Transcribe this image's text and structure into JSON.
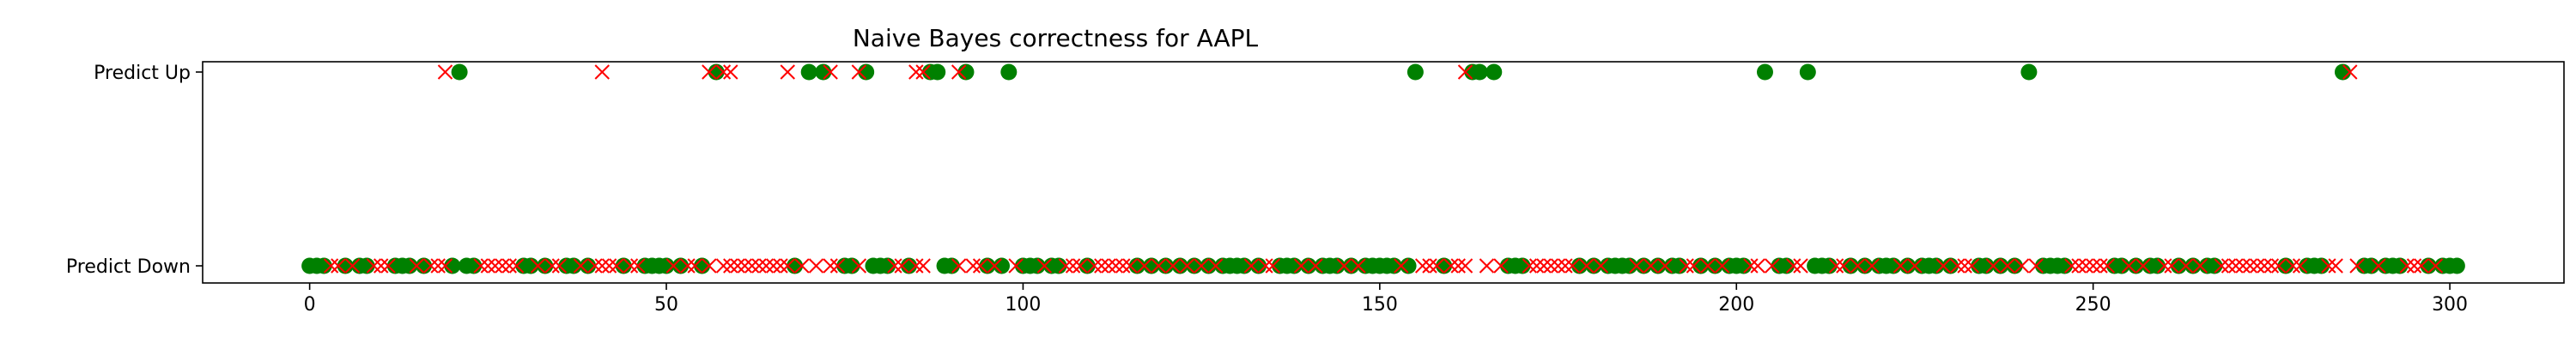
{
  "chart_data": {
    "type": "scatter",
    "title": "Naive Bayes correctness for AAPL",
    "xlabel": "",
    "ylabel": "",
    "xlim": [
      -15,
      316
    ],
    "x_ticks": [
      0,
      50,
      100,
      150,
      200,
      250,
      300
    ],
    "y_categories": [
      "Predict Down",
      "Predict Up"
    ],
    "grid": false,
    "colors": {
      "correct": "#008000",
      "incorrect": "#ff0000",
      "axis": "#000000"
    },
    "series": [
      {
        "marker": "circle",
        "color": "#008000",
        "points": [
          [
            0,
            0
          ],
          [
            1,
            0
          ],
          [
            2,
            0
          ],
          [
            5,
            0
          ],
          [
            7,
            0
          ],
          [
            8,
            0
          ],
          [
            12,
            0
          ],
          [
            13,
            0
          ],
          [
            14,
            0
          ],
          [
            16,
            0
          ],
          [
            20,
            0
          ],
          [
            22,
            0
          ],
          [
            23,
            0
          ],
          [
            30,
            0
          ],
          [
            31,
            0
          ],
          [
            33,
            0
          ],
          [
            36,
            0
          ],
          [
            37,
            0
          ],
          [
            39,
            0
          ],
          [
            44,
            0
          ],
          [
            47,
            0
          ],
          [
            48,
            0
          ],
          [
            49,
            0
          ],
          [
            50,
            0
          ],
          [
            52,
            0
          ],
          [
            55,
            0
          ],
          [
            68,
            0
          ],
          [
            75,
            0
          ],
          [
            76,
            0
          ],
          [
            79,
            0
          ],
          [
            80,
            0
          ],
          [
            81,
            0
          ],
          [
            84,
            0
          ],
          [
            89,
            0
          ],
          [
            90,
            0
          ],
          [
            95,
            0
          ],
          [
            97,
            0
          ],
          [
            100,
            0
          ],
          [
            101,
            0
          ],
          [
            102,
            0
          ],
          [
            104,
            0
          ],
          [
            105,
            0
          ],
          [
            109,
            0
          ],
          [
            116,
            0
          ],
          [
            118,
            0
          ],
          [
            120,
            0
          ],
          [
            122,
            0
          ],
          [
            124,
            0
          ],
          [
            126,
            0
          ],
          [
            128,
            0
          ],
          [
            129,
            0
          ],
          [
            130,
            0
          ],
          [
            131,
            0
          ],
          [
            133,
            0
          ],
          [
            136,
            0
          ],
          [
            137,
            0
          ],
          [
            138,
            0
          ],
          [
            140,
            0
          ],
          [
            142,
            0
          ],
          [
            143,
            0
          ],
          [
            144,
            0
          ],
          [
            146,
            0
          ],
          [
            148,
            0
          ],
          [
            149,
            0
          ],
          [
            150,
            0
          ],
          [
            151,
            0
          ],
          [
            152,
            0
          ],
          [
            154,
            0
          ],
          [
            159,
            0
          ],
          [
            168,
            0
          ],
          [
            169,
            0
          ],
          [
            170,
            0
          ],
          [
            178,
            0
          ],
          [
            180,
            0
          ],
          [
            182,
            0
          ],
          [
            183,
            0
          ],
          [
            184,
            0
          ],
          [
            185,
            0
          ],
          [
            187,
            0
          ],
          [
            189,
            0
          ],
          [
            191,
            0
          ],
          [
            192,
            0
          ],
          [
            195,
            0
          ],
          [
            197,
            0
          ],
          [
            199,
            0
          ],
          [
            200,
            0
          ],
          [
            201,
            0
          ],
          [
            206,
            0
          ],
          [
            207,
            0
          ],
          [
            211,
            0
          ],
          [
            212,
            0
          ],
          [
            213,
            0
          ],
          [
            216,
            0
          ],
          [
            218,
            0
          ],
          [
            220,
            0
          ],
          [
            221,
            0
          ],
          [
            222,
            0
          ],
          [
            224,
            0
          ],
          [
            226,
            0
          ],
          [
            227,
            0
          ],
          [
            228,
            0
          ],
          [
            230,
            0
          ],
          [
            234,
            0
          ],
          [
            235,
            0
          ],
          [
            237,
            0
          ],
          [
            239,
            0
          ],
          [
            243,
            0
          ],
          [
            244,
            0
          ],
          [
            245,
            0
          ],
          [
            246,
            0
          ],
          [
            253,
            0
          ],
          [
            254,
            0
          ],
          [
            256,
            0
          ],
          [
            258,
            0
          ],
          [
            259,
            0
          ],
          [
            262,
            0
          ],
          [
            264,
            0
          ],
          [
            266,
            0
          ],
          [
            267,
            0
          ],
          [
            277,
            0
          ],
          [
            280,
            0
          ],
          [
            281,
            0
          ],
          [
            282,
            0
          ],
          [
            288,
            0
          ],
          [
            289,
            0
          ],
          [
            291,
            0
          ],
          [
            292,
            0
          ],
          [
            293,
            0
          ],
          [
            297,
            0
          ],
          [
            299,
            0
          ],
          [
            300,
            0
          ],
          [
            301,
            0
          ],
          [
            21,
            1
          ],
          [
            57,
            1
          ],
          [
            70,
            1
          ],
          [
            72,
            1
          ],
          [
            78,
            1
          ],
          [
            87,
            1
          ],
          [
            88,
            1
          ],
          [
            92,
            1
          ],
          [
            98,
            1
          ],
          [
            155,
            1
          ],
          [
            163,
            1
          ],
          [
            164,
            1
          ],
          [
            166,
            1
          ],
          [
            204,
            1
          ],
          [
            210,
            1
          ],
          [
            241,
            1
          ],
          [
            285,
            1
          ]
        ]
      },
      {
        "marker": "x",
        "color": "#ff0000",
        "points": [
          [
            3,
            0
          ],
          [
            4,
            0
          ],
          [
            6,
            0
          ],
          [
            9,
            0
          ],
          [
            10,
            0
          ],
          [
            11,
            0
          ],
          [
            15,
            0
          ],
          [
            17,
            0
          ],
          [
            18,
            0
          ],
          [
            19,
            0
          ],
          [
            24,
            0
          ],
          [
            25,
            0
          ],
          [
            26,
            0
          ],
          [
            27,
            0
          ],
          [
            28,
            0
          ],
          [
            29,
            0
          ],
          [
            32,
            0
          ],
          [
            34,
            0
          ],
          [
            35,
            0
          ],
          [
            38,
            0
          ],
          [
            40,
            0
          ],
          [
            41,
            0
          ],
          [
            42,
            0
          ],
          [
            43,
            0
          ],
          [
            45,
            0
          ],
          [
            46,
            0
          ],
          [
            51,
            0
          ],
          [
            53,
            0
          ],
          [
            54,
            0
          ],
          [
            56,
            0
          ],
          [
            58,
            0
          ],
          [
            59,
            0
          ],
          [
            60,
            0
          ],
          [
            61,
            0
          ],
          [
            62,
            0
          ],
          [
            63,
            0
          ],
          [
            64,
            0
          ],
          [
            65,
            0
          ],
          [
            66,
            0
          ],
          [
            67,
            0
          ],
          [
            69,
            0
          ],
          [
            71,
            0
          ],
          [
            73,
            0
          ],
          [
            74,
            0
          ],
          [
            77,
            0
          ],
          [
            82,
            0
          ],
          [
            83,
            0
          ],
          [
            85,
            0
          ],
          [
            86,
            0
          ],
          [
            91,
            0
          ],
          [
            93,
            0
          ],
          [
            94,
            0
          ],
          [
            96,
            0
          ],
          [
            99,
            0
          ],
          [
            103,
            0
          ],
          [
            106,
            0
          ],
          [
            107,
            0
          ],
          [
            108,
            0
          ],
          [
            110,
            0
          ],
          [
            111,
            0
          ],
          [
            112,
            0
          ],
          [
            113,
            0
          ],
          [
            114,
            0
          ],
          [
            115,
            0
          ],
          [
            117,
            0
          ],
          [
            119,
            0
          ],
          [
            121,
            0
          ],
          [
            123,
            0
          ],
          [
            125,
            0
          ],
          [
            127,
            0
          ],
          [
            132,
            0
          ],
          [
            134,
            0
          ],
          [
            135,
            0
          ],
          [
            139,
            0
          ],
          [
            141,
            0
          ],
          [
            145,
            0
          ],
          [
            147,
            0
          ],
          [
            153,
            0
          ],
          [
            156,
            0
          ],
          [
            157,
            0
          ],
          [
            158,
            0
          ],
          [
            160,
            0
          ],
          [
            161,
            0
          ],
          [
            162,
            0
          ],
          [
            165,
            0
          ],
          [
            167,
            0
          ],
          [
            171,
            0
          ],
          [
            172,
            0
          ],
          [
            173,
            0
          ],
          [
            174,
            0
          ],
          [
            175,
            0
          ],
          [
            176,
            0
          ],
          [
            177,
            0
          ],
          [
            179,
            0
          ],
          [
            181,
            0
          ],
          [
            186,
            0
          ],
          [
            188,
            0
          ],
          [
            190,
            0
          ],
          [
            193,
            0
          ],
          [
            194,
            0
          ],
          [
            196,
            0
          ],
          [
            198,
            0
          ],
          [
            202,
            0
          ],
          [
            203,
            0
          ],
          [
            205,
            0
          ],
          [
            208,
            0
          ],
          [
            209,
            0
          ],
          [
            214,
            0
          ],
          [
            215,
            0
          ],
          [
            217,
            0
          ],
          [
            219,
            0
          ],
          [
            223,
            0
          ],
          [
            225,
            0
          ],
          [
            229,
            0
          ],
          [
            231,
            0
          ],
          [
            232,
            0
          ],
          [
            233,
            0
          ],
          [
            236,
            0
          ],
          [
            238,
            0
          ],
          [
            240,
            0
          ],
          [
            242,
            0
          ],
          [
            247,
            0
          ],
          [
            248,
            0
          ],
          [
            249,
            0
          ],
          [
            250,
            0
          ],
          [
            251,
            0
          ],
          [
            252,
            0
          ],
          [
            255,
            0
          ],
          [
            257,
            0
          ],
          [
            260,
            0
          ],
          [
            261,
            0
          ],
          [
            263,
            0
          ],
          [
            265,
            0
          ],
          [
            268,
            0
          ],
          [
            269,
            0
          ],
          [
            270,
            0
          ],
          [
            271,
            0
          ],
          [
            272,
            0
          ],
          [
            273,
            0
          ],
          [
            274,
            0
          ],
          [
            275,
            0
          ],
          [
            276,
            0
          ],
          [
            278,
            0
          ],
          [
            279,
            0
          ],
          [
            283,
            0
          ],
          [
            284,
            0
          ],
          [
            287,
            0
          ],
          [
            290,
            0
          ],
          [
            294,
            0
          ],
          [
            295,
            0
          ],
          [
            296,
            0
          ],
          [
            298,
            0
          ],
          [
            19,
            1
          ],
          [
            41,
            1
          ],
          [
            56,
            1
          ],
          [
            58,
            1
          ],
          [
            59,
            1
          ],
          [
            67,
            1
          ],
          [
            73,
            1
          ],
          [
            77,
            1
          ],
          [
            85,
            1
          ],
          [
            86,
            1
          ],
          [
            91,
            1
          ],
          [
            162,
            1
          ],
          [
            286,
            1
          ]
        ]
      }
    ]
  }
}
